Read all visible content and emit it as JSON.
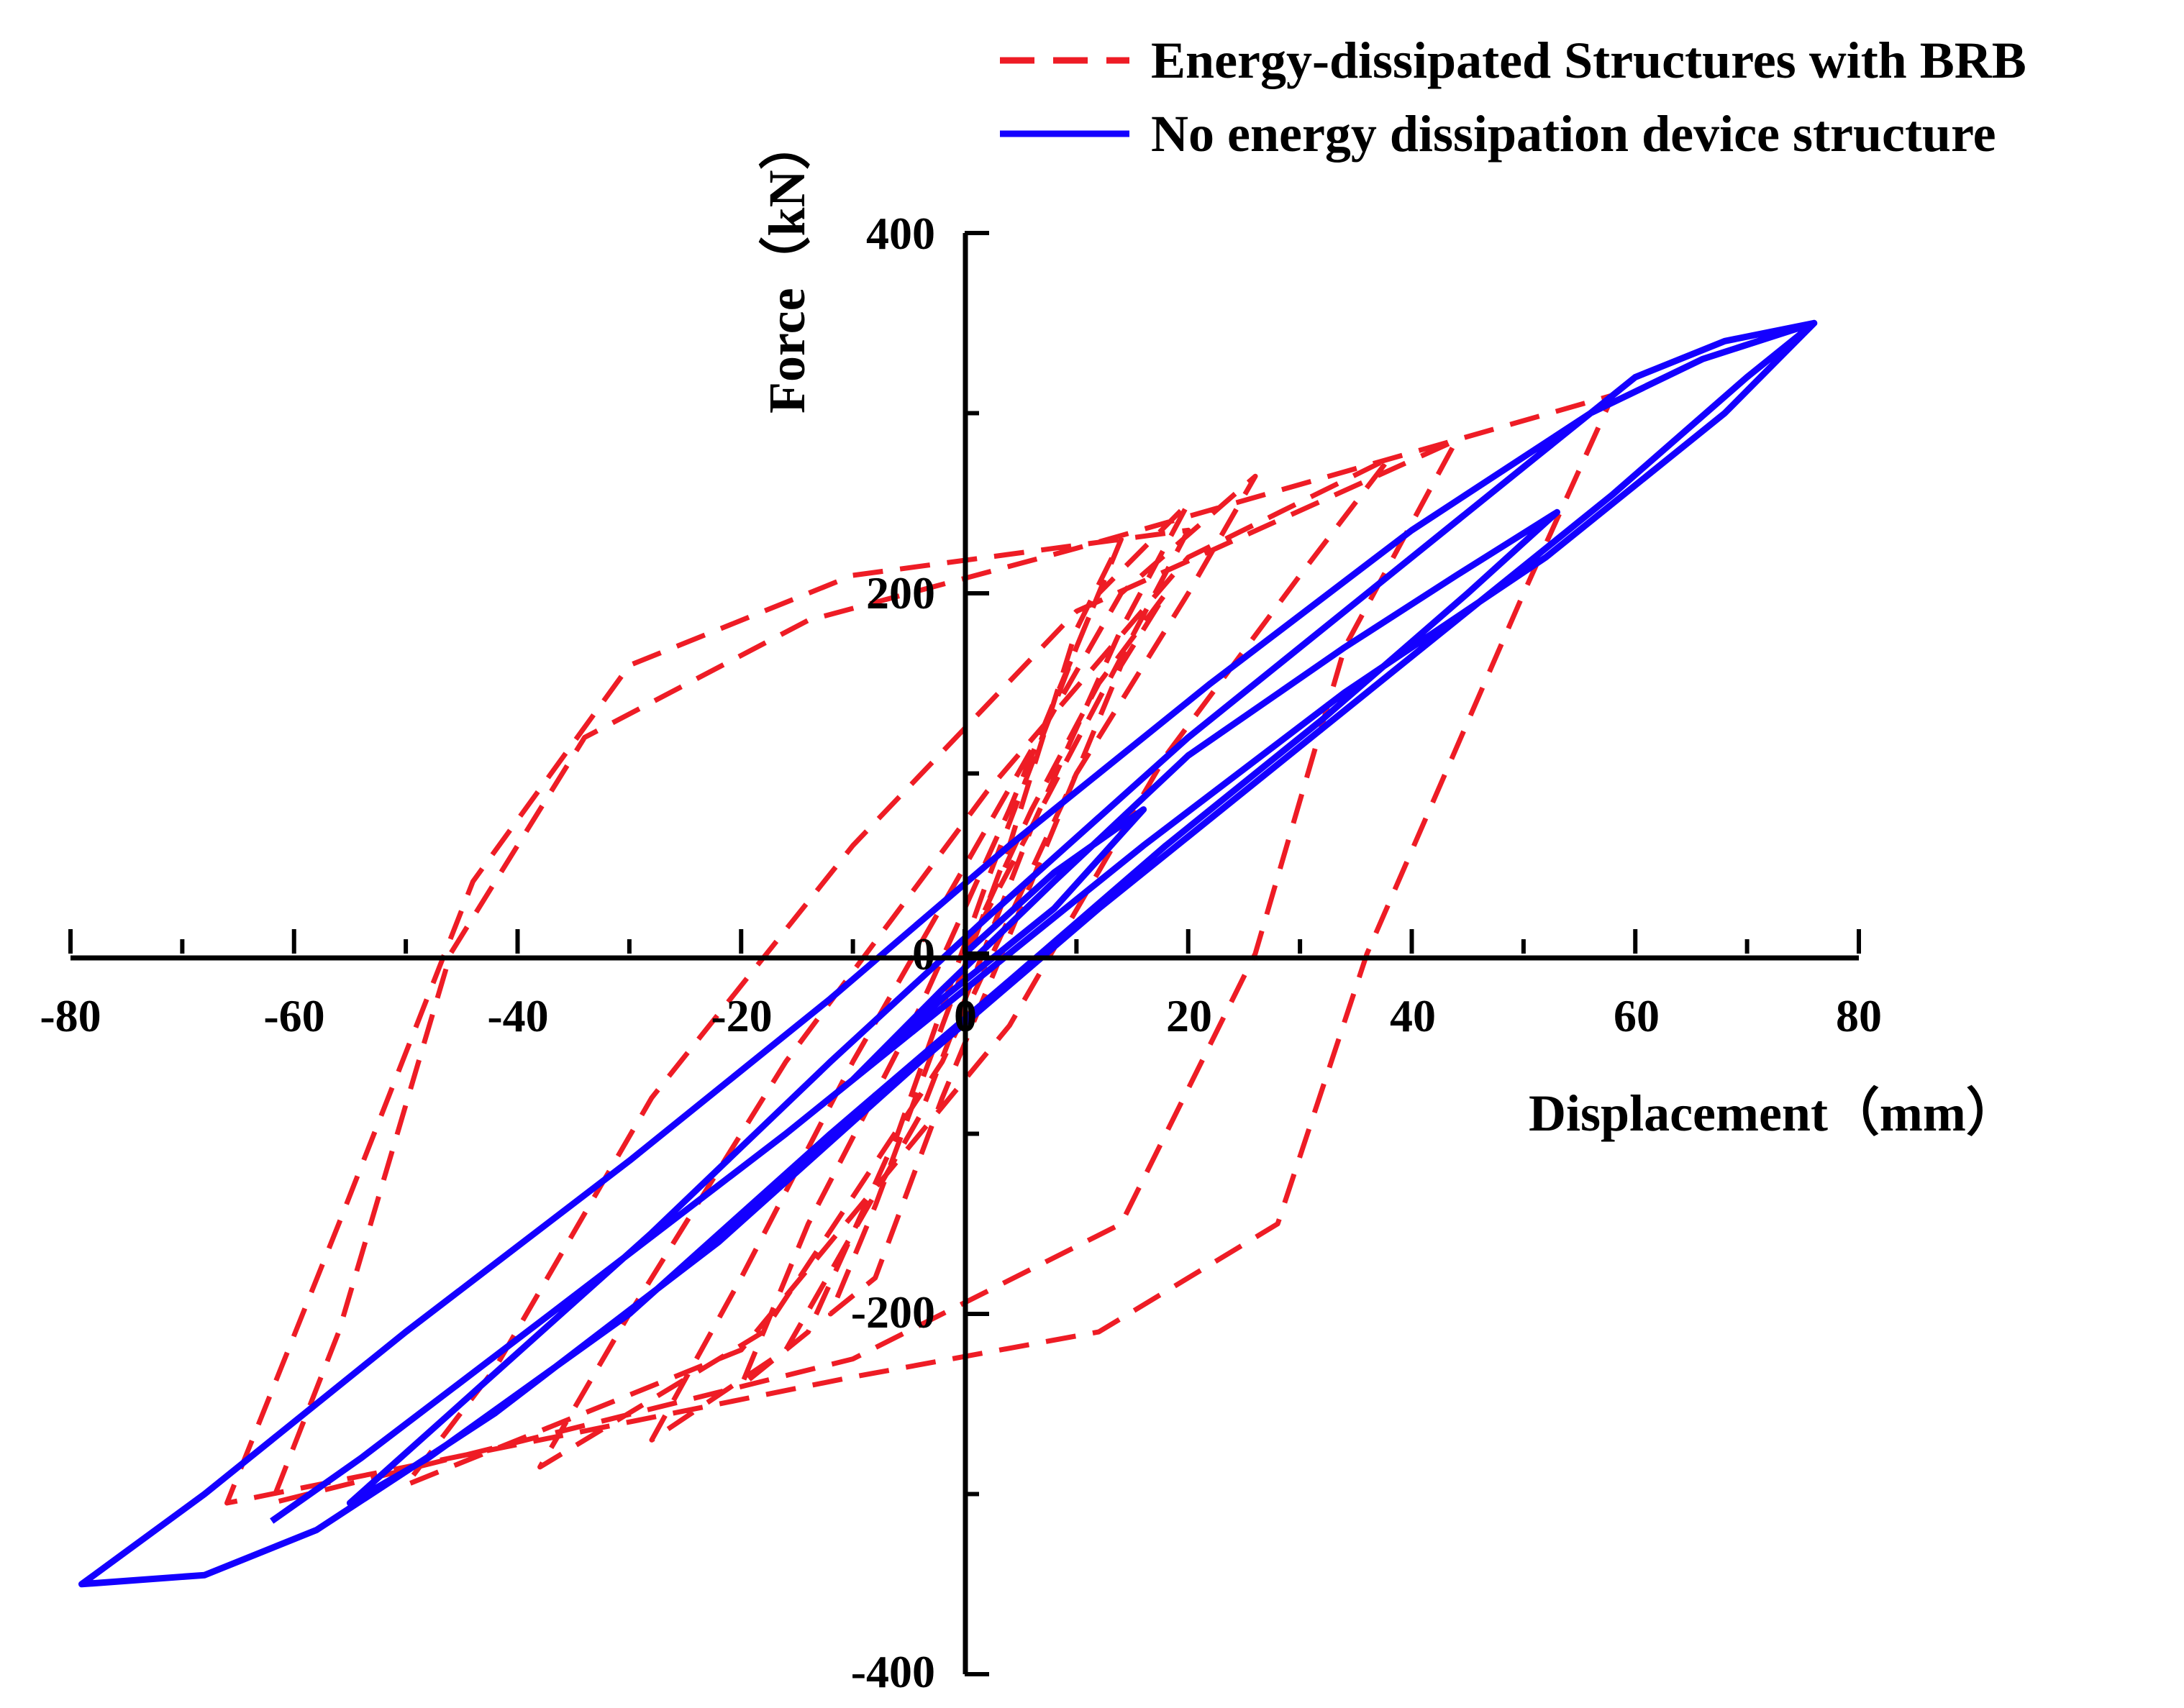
{
  "chart_data": {
    "type": "line",
    "title": "",
    "xlabel": "Displacement（mm）",
    "ylabel": "Force（kN）",
    "xlim": [
      -80,
      80
    ],
    "ylim": [
      -400,
      400
    ],
    "x_ticks": [
      "-80",
      "-60",
      "-40",
      "-20",
      "0",
      "20",
      "40",
      "60",
      "80"
    ],
    "y_ticks": [
      "400",
      "200",
      "0",
      "-200",
      "-400"
    ],
    "legend": {
      "position": "top-right",
      "entries": [
        "Energy-dissipated Structures with BRB",
        "No energy dissipation device structure"
      ]
    },
    "series": [
      {
        "name": "Energy-dissipated Structures with BRB",
        "color": "#ee1c25",
        "style": "dashed",
        "points": [
          [
            0,
            0
          ],
          [
            6,
            80
          ],
          [
            12,
            150
          ],
          [
            18,
            200
          ],
          [
            14,
            160
          ],
          [
            6,
            40
          ],
          [
            -2,
            -80
          ],
          [
            -8,
            -180
          ],
          [
            -12,
            -200
          ],
          [
            -8,
            -140
          ],
          [
            -2,
            -40
          ],
          [
            4,
            60
          ],
          [
            10,
            180
          ],
          [
            14,
            230
          ],
          [
            10,
            170
          ],
          [
            2,
            40
          ],
          [
            -6,
            -100
          ],
          [
            -14,
            -210
          ],
          [
            -20,
            -240
          ],
          [
            -14,
            -150
          ],
          [
            -4,
            -30
          ],
          [
            4,
            80
          ],
          [
            12,
            200
          ],
          [
            20,
            250
          ],
          [
            14,
            180
          ],
          [
            6,
            70
          ],
          [
            -4,
            -90
          ],
          [
            -16,
            -220
          ],
          [
            -28,
            -270
          ],
          [
            -20,
            -180
          ],
          [
            -10,
            -60
          ],
          [
            2,
            70
          ],
          [
            14,
            200
          ],
          [
            26,
            265
          ],
          [
            20,
            200
          ],
          [
            10,
            100
          ],
          [
            -2,
            -60
          ],
          [
            -18,
            -210
          ],
          [
            -38,
            -285
          ],
          [
            -30,
            -200
          ],
          [
            -16,
            -60
          ],
          [
            2,
            90
          ],
          [
            20,
            220
          ],
          [
            38,
            275
          ],
          [
            30,
            210
          ],
          [
            18,
            110
          ],
          [
            4,
            -40
          ],
          [
            -20,
            -220
          ],
          [
            -50,
            -295
          ],
          [
            -42,
            -230
          ],
          [
            -28,
            -80
          ],
          [
            -10,
            60
          ],
          [
            10,
            190
          ],
          [
            44,
            285
          ],
          [
            34,
            170
          ],
          [
            26,
            0
          ],
          [
            14,
            -150
          ],
          [
            -10,
            -225
          ],
          [
            -62,
            -305
          ],
          [
            -56,
            -210
          ],
          [
            -46,
            0
          ],
          [
            -34,
            120
          ],
          [
            -14,
            185
          ],
          [
            10,
            225
          ],
          [
            58,
            310
          ],
          [
            50,
            200
          ],
          [
            36,
            0
          ],
          [
            28,
            -150
          ],
          [
            12,
            -210
          ],
          [
            -10,
            -235
          ],
          [
            -66,
            -305
          ],
          [
            -56,
            -150
          ],
          [
            -44,
            40
          ],
          [
            -30,
            160
          ],
          [
            -10,
            210
          ],
          [
            20,
            235
          ],
          [
            0,
            0
          ]
        ]
      },
      {
        "name": "No energy dissipation device structure",
        "color": "#1400ff",
        "style": "solid",
        "points": [
          [
            0,
            0
          ],
          [
            8,
            45
          ],
          [
            16,
            80
          ],
          [
            8,
            25
          ],
          [
            -2,
            -25
          ],
          [
            -10,
            -70
          ],
          [
            -2,
            -20
          ],
          [
            8,
            40
          ],
          [
            20,
            110
          ],
          [
            34,
            170
          ],
          [
            44,
            210
          ],
          [
            53,
            245
          ],
          [
            45,
            200
          ],
          [
            32,
            130
          ],
          [
            18,
            60
          ],
          [
            4,
            -15
          ],
          [
            -12,
            -100
          ],
          [
            -30,
            -200
          ],
          [
            -48,
            -280
          ],
          [
            -55,
            -305
          ],
          [
            -46,
            -255
          ],
          [
            -28,
            -155
          ],
          [
            -12,
            -60
          ],
          [
            2,
            20
          ],
          [
            20,
            120
          ],
          [
            38,
            210
          ],
          [
            52,
            280
          ],
          [
            60,
            320
          ],
          [
            68,
            340
          ],
          [
            76,
            350
          ],
          [
            70,
            320
          ],
          [
            58,
            255
          ],
          [
            44,
            185
          ],
          [
            28,
            105
          ],
          [
            12,
            25
          ],
          [
            -4,
            -60
          ],
          [
            -22,
            -160
          ],
          [
            -42,
            -255
          ],
          [
            -58,
            -320
          ],
          [
            -68,
            -345
          ],
          [
            -79,
            -350
          ],
          [
            -68,
            -300
          ],
          [
            -50,
            -210
          ],
          [
            -30,
            -115
          ],
          [
            -12,
            -25
          ],
          [
            4,
            60
          ],
          [
            22,
            150
          ],
          [
            40,
            235
          ],
          [
            56,
            300
          ],
          [
            66,
            330
          ],
          [
            76,
            350
          ],
          [
            68,
            300
          ],
          [
            52,
            220
          ],
          [
            34,
            145
          ],
          [
            16,
            60
          ],
          [
            0,
            -20
          ],
          [
            -16,
            -100
          ],
          [
            -36,
            -195
          ],
          [
            -54,
            -280
          ],
          [
            -62,
            -315
          ]
        ]
      }
    ]
  }
}
